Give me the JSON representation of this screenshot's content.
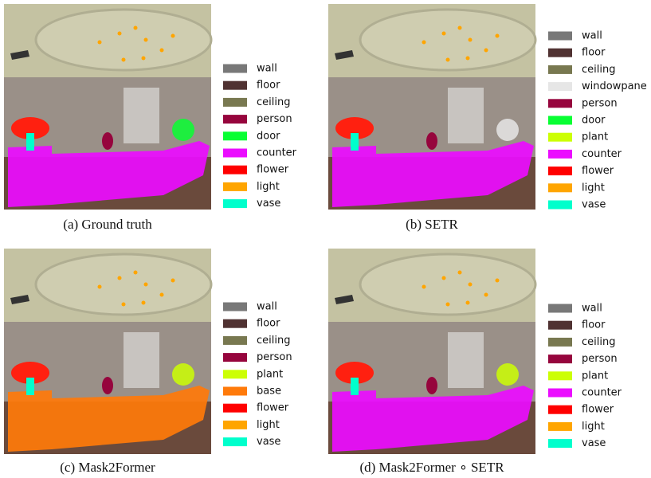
{
  "panels": [
    {
      "caption": "(a) Ground truth",
      "legend": [
        {
          "label": "wall",
          "color": "#787878"
        },
        {
          "label": "floor",
          "color": "#503232"
        },
        {
          "label": "ceiling",
          "color": "#787850"
        },
        {
          "label": "person",
          "color": "#96053d"
        },
        {
          "label": "door",
          "color": "#08ff33"
        },
        {
          "label": "counter",
          "color": "#eb0cff"
        },
        {
          "label": "flower",
          "color": "#ff0000"
        },
        {
          "label": "light",
          "color": "#ffa500"
        },
        {
          "label": "vase",
          "color": "#00ffcc"
        }
      ]
    },
    {
      "caption": "(b) SETR",
      "legend": [
        {
          "label": "wall",
          "color": "#787878"
        },
        {
          "label": "floor",
          "color": "#503232"
        },
        {
          "label": "ceiling",
          "color": "#787850"
        },
        {
          "label": "windowpane",
          "color": "#e6e6e6"
        },
        {
          "label": "person",
          "color": "#96053d"
        },
        {
          "label": "door",
          "color": "#08ff33"
        },
        {
          "label": "plant",
          "color": "#ccff04"
        },
        {
          "label": "counter",
          "color": "#eb0cff"
        },
        {
          "label": "flower",
          "color": "#ff0000"
        },
        {
          "label": "light",
          "color": "#ffa500"
        },
        {
          "label": "vase",
          "color": "#00ffcc"
        }
      ]
    },
    {
      "caption": "(c) Mask2Former",
      "legend": [
        {
          "label": "wall",
          "color": "#787878"
        },
        {
          "label": "floor",
          "color": "#503232"
        },
        {
          "label": "ceiling",
          "color": "#787850"
        },
        {
          "label": "person",
          "color": "#96053d"
        },
        {
          "label": "plant",
          "color": "#ccff04"
        },
        {
          "label": "base",
          "color": "#ff7a0a"
        },
        {
          "label": "flower",
          "color": "#ff0000"
        },
        {
          "label": "light",
          "color": "#ffa500"
        },
        {
          "label": "vase",
          "color": "#00ffcc"
        }
      ]
    },
    {
      "caption": "(d) Mask2Former ∘ SETR",
      "legend": [
        {
          "label": "wall",
          "color": "#787878"
        },
        {
          "label": "floor",
          "color": "#503232"
        },
        {
          "label": "ceiling",
          "color": "#787850"
        },
        {
          "label": "person",
          "color": "#96053d"
        },
        {
          "label": "plant",
          "color": "#ccff04"
        },
        {
          "label": "counter",
          "color": "#eb0cff"
        },
        {
          "label": "flower",
          "color": "#ff0000"
        },
        {
          "label": "light",
          "color": "#ffa500"
        },
        {
          "label": "vase",
          "color": "#00ffcc"
        }
      ]
    }
  ]
}
